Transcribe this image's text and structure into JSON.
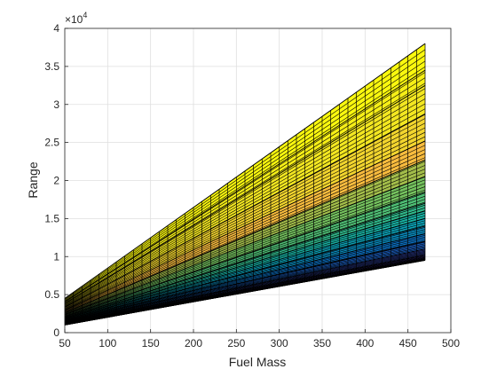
{
  "chart_data": {
    "type": "area",
    "xlabel": "Fuel Mass",
    "ylabel": "Range",
    "exponent_label": "×10",
    "exponent_power": "4",
    "xlim": [
      50,
      500
    ],
    "ylim": [
      0,
      40000
    ],
    "x_ticks": [
      50,
      100,
      150,
      200,
      250,
      300,
      350,
      400,
      450,
      500
    ],
    "y_ticks": [
      0,
      5000,
      10000,
      15000,
      20000,
      25000,
      30000,
      35000,
      40000
    ],
    "x_tick_labels": [
      "50",
      "100",
      "150",
      "200",
      "250",
      "300",
      "350",
      "400",
      "450",
      "500"
    ],
    "y_tick_labels": [
      "0",
      "0.5",
      "1",
      "1.5",
      "2",
      "2.5",
      "3",
      "3.5",
      "4"
    ],
    "grid": true,
    "colormap": "parula",
    "x_start": 50,
    "x_end": 470,
    "x_step": 10,
    "range_at_x_start": {
      "min": 1000,
      "max": 4500
    },
    "range_at_x_end": {
      "min": 9500,
      "max": 38000
    },
    "bands_at_x_end": [
      {
        "lower": 9500,
        "upper": 10200,
        "color": "#352a87"
      },
      {
        "lower": 10200,
        "upper": 11000,
        "color": "#2f3f9a"
      },
      {
        "lower": 11000,
        "upper": 12000,
        "color": "#1a5ab6"
      },
      {
        "lower": 12000,
        "upper": 13000,
        "color": "#0c72c5"
      },
      {
        "lower": 13000,
        "upper": 14000,
        "color": "#0a8dbf"
      },
      {
        "lower": 14000,
        "upper": 15000,
        "color": "#0ca2b6"
      },
      {
        "lower": 15000,
        "upper": 16000,
        "color": "#18b0a1"
      },
      {
        "lower": 16000,
        "upper": 17000,
        "color": "#30b88a"
      },
      {
        "lower": 17000,
        "upper": 18500,
        "color": "#4fbf75"
      },
      {
        "lower": 18500,
        "upper": 20500,
        "color": "#74c15e"
      },
      {
        "lower": 20500,
        "upper": 22700,
        "color": "#a3bd4a"
      },
      {
        "lower": 22700,
        "upper": 25200,
        "color": "#f9bc3e"
      },
      {
        "lower": 25200,
        "upper": 28700,
        "color": "#f2d52e"
      },
      {
        "lower": 28700,
        "upper": 32500,
        "color": "#f3e721"
      },
      {
        "lower": 32500,
        "upper": 34500,
        "color": "#f6ef17"
      },
      {
        "lower": 34500,
        "upper": 38000,
        "color": "#faf80f"
      }
    ]
  }
}
